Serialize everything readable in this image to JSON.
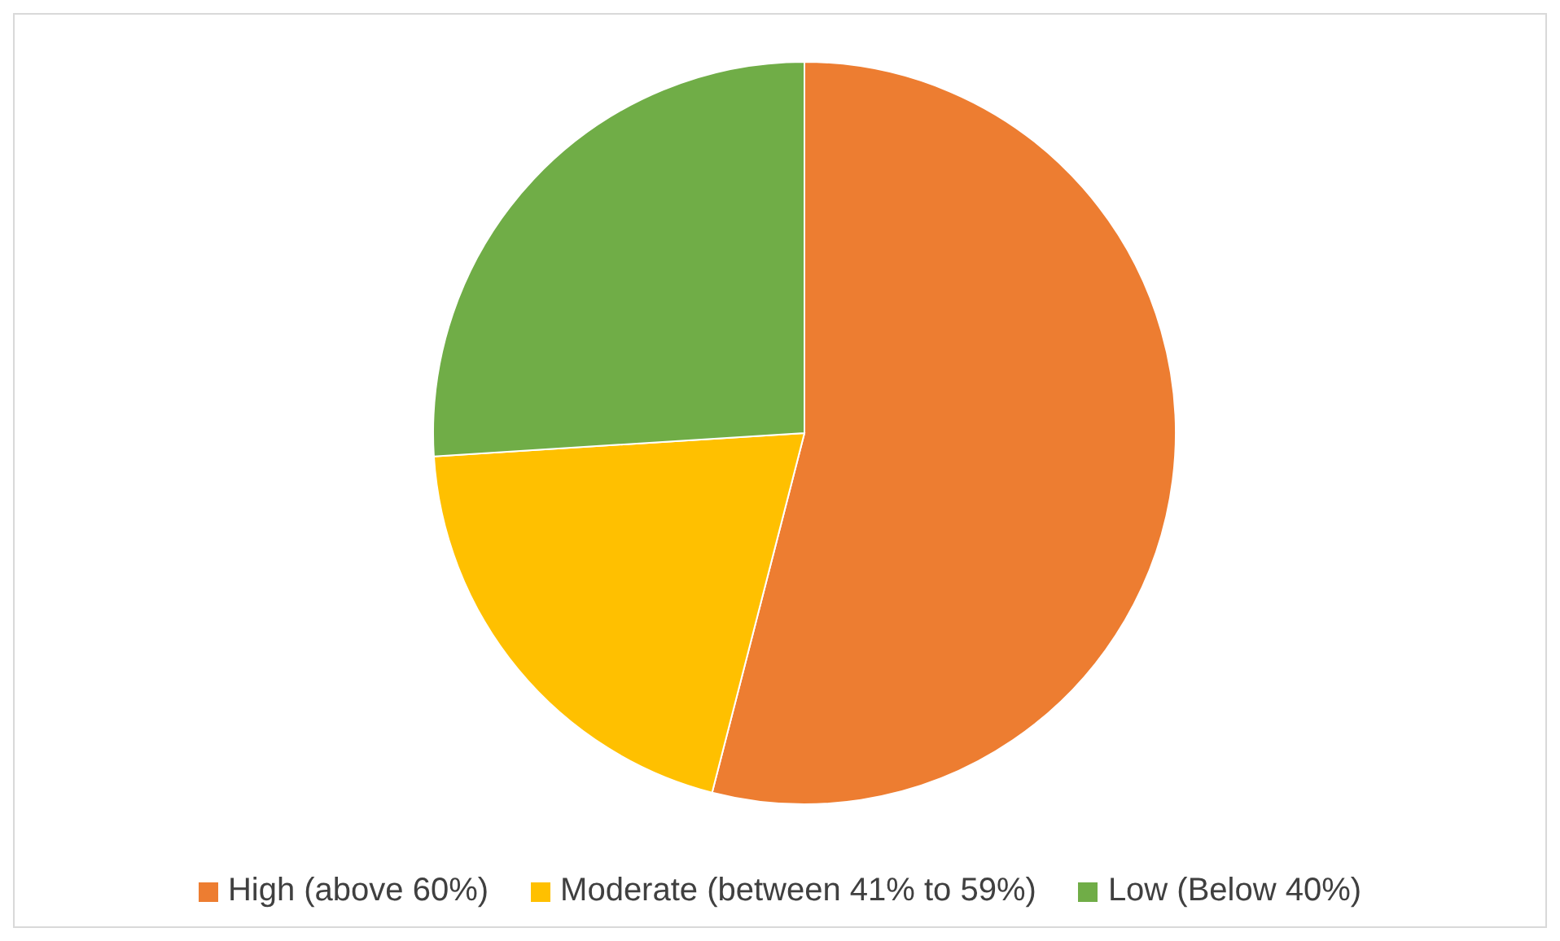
{
  "chart_data": {
    "type": "pie",
    "categories": [
      "High (above 60%)",
      "Moderate (between 41% to 59%)",
      "Low (Below 40%)"
    ],
    "values": [
      54,
      20,
      26
    ],
    "colors": [
      "#ed7d31",
      "#ffc000",
      "#70ad47"
    ],
    "legend": "bottom"
  }
}
